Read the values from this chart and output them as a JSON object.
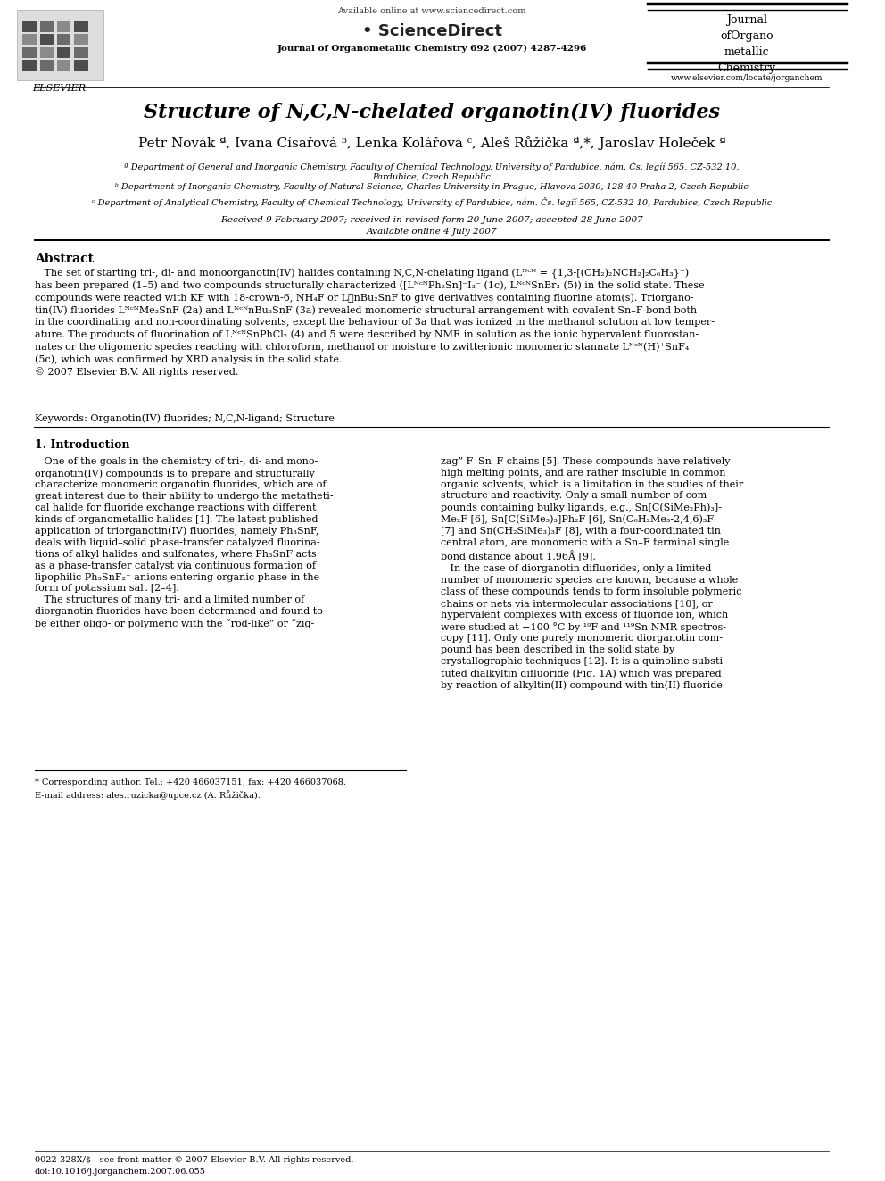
{
  "bg_color": "#ffffff",
  "page_width": 9.92,
  "page_height": 13.23,
  "header": {
    "available_online": "Available online at www.sciencedirect.com",
    "journal_name_bold": "Journal of Organometallic Chemistry 692 (2007) 4287–4296",
    "journal_right_text": "Journal\nofOrgano\nmetallic\nChemistry",
    "website": "www.elsevier.com/locate/jorganchem",
    "elsevier_text": "ELSEVIER"
  },
  "title": "Structure of N,C,N-chelated organotin(IV) fluorides",
  "authors": "Petr Novák ª, Ivana Císařová ᵇ, Lenka Kolářová ᶜ, Aleš Růžička ª,*, Jaroslav Holeček ª",
  "affil_a": "ª Department of General and Inorganic Chemistry, Faculty of Chemical Technology, University of Pardubice, nám. Čs. legíí 565, CZ-532 10,\nPardubice, Czech Republic",
  "affil_b": "ᵇ Department of Inorganic Chemistry, Faculty of Natural Science, Charles University in Prague, Hlavova 2030, 128 40 Praha 2, Czech Republic",
  "affil_c": "ᶜ Department of Analytical Chemistry, Faculty of Chemical Technology, University of Pardubice, nám. Čs. legíí 565, CZ-532 10, Pardubice, Czech Republic",
  "received": "Received 9 February 2007; received in revised form 20 June 2007; accepted 28 June 2007",
  "available": "Available online 4 July 2007",
  "abstract_title": "Abstract",
  "keywords_label": "Keywords:",
  "keywords_text": "Organotin(IV) fluorides; N,C,N-ligand; Structure",
  "section1_title": "1. Introduction",
  "footnote_corresponding": "* Corresponding author. Tel.: +420 466037151; fax: +420 466037068.",
  "footnote_email": "E-mail address: ales.ruzicka@upce.cz (A. Růžička).",
  "footer_issn": "0022-328X/$ - see front matter © 2007 Elsevier B.V. All rights reserved.",
  "footer_doi": "doi:10.1016/j.jorganchem.2007.06.055"
}
